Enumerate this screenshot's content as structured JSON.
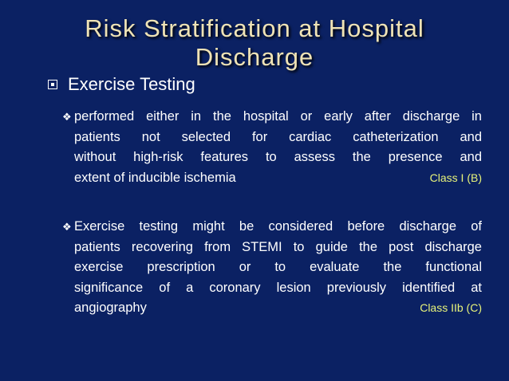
{
  "title": {
    "line1": "Risk Stratification at Hospital",
    "line2": "Discharge"
  },
  "heading": {
    "icon": "square-bullet-icon",
    "text": "Exercise Testing"
  },
  "bullets": [
    {
      "icon": "diamond-bullet-icon",
      "lines": [
        "performed either in the hospital or early after discharge in",
        "patients not selected for cardiac catheterization and",
        "without high-risk features to assess the presence and",
        "extent of inducible ischemia"
      ],
      "class_label": "Class I (B)"
    },
    {
      "icon": "diamond-bullet-icon",
      "lines": [
        "Exercise testing might be considered before discharge of",
        "patients recovering from STEMI to guide the post discharge",
        "exercise prescription or to evaluate the functional",
        "significance of a coronary lesion previously identified at",
        "angiography"
      ],
      "class_label": "Class IIb (C)"
    }
  ],
  "colors": {
    "background": "#0b2163",
    "title": "#efe3b6",
    "class_label": "#e6f27a"
  }
}
